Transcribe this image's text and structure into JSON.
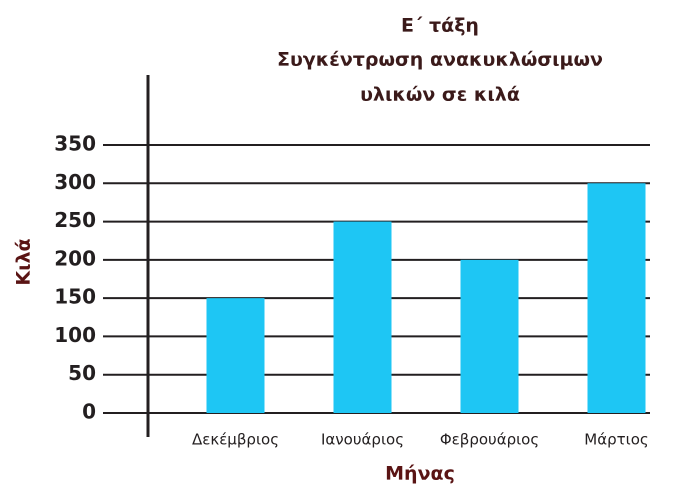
{
  "chart_data": {
    "type": "bar",
    "title": [
      "Ε΄ τάξη",
      "Συγκέντρωση ανακυκλώσιμων",
      "υλικών σε κιλά"
    ],
    "x_label": "Μήνας",
    "y_label": "Κιλά",
    "categories": [
      "Δεκέμβριος",
      "Ιανουάριος",
      "Φεβρουάριος",
      "Μάρτιος"
    ],
    "values": [
      150,
      250,
      200,
      300
    ],
    "color": "#1ec6f4",
    "ylim": [
      0,
      350
    ],
    "yticks": [
      0,
      50,
      100,
      150,
      200,
      250,
      300,
      350
    ],
    "grid": true
  }
}
